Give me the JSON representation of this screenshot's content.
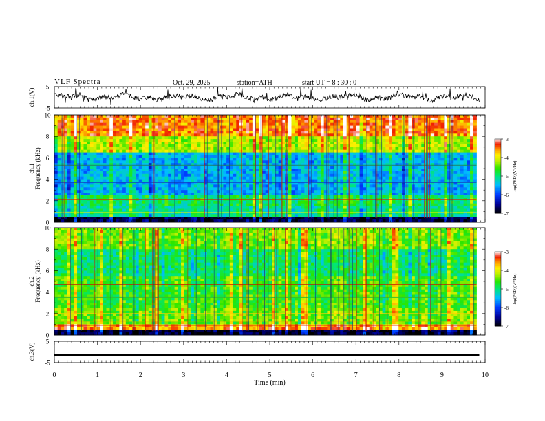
{
  "header": {
    "title": "VLF  Spectra",
    "date": "Oct. 29, 2025",
    "station": "station=ATH",
    "start": "start  UT  =   8  : 30 : 0"
  },
  "chart_data": [
    {
      "type": "line",
      "name": "ch1-waveform",
      "ylabel": "ch.1(V)",
      "ylim": [
        -5,
        5
      ],
      "yticks": [
        "5",
        "-5"
      ],
      "series": [
        {
          "name": "ch.1",
          "description": "noisy waveform, amplitude mostly within ±2 V"
        }
      ]
    },
    {
      "type": "heatmap",
      "name": "ch1-spectrogram",
      "ylabel_line1": "ch.1",
      "ylabel_line2": "Frequency  (kHz)",
      "yticks": [
        "0",
        "2",
        "4",
        "6",
        "8",
        "10"
      ],
      "ylim": [
        0,
        10
      ],
      "xlim": [
        0,
        9.8
      ],
      "colorbar": {
        "label": "log(PSD)(V²/Hz)",
        "ticks": [
          "-3",
          "-4",
          "-5",
          "-6",
          "-7"
        ],
        "range": [
          -7,
          -3
        ]
      }
    },
    {
      "type": "heatmap",
      "name": "ch2-spectrogram",
      "ylabel_line1": "ch.2",
      "ylabel_line2": "Frequency  (kHz)",
      "yticks": [
        "0",
        "2",
        "4",
        "6",
        "8",
        "10"
      ],
      "ylim": [
        0,
        10
      ],
      "xlim": [
        0,
        9.8
      ],
      "colorbar": {
        "label": "log(PSD)(V²/Hz)",
        "ticks": [
          "-3",
          "-4",
          "-5",
          "-6",
          "-7"
        ],
        "range": [
          -7,
          -3
        ]
      }
    },
    {
      "type": "line",
      "name": "ch3-waveform",
      "ylabel": "ch.3(V)",
      "ylim": [
        -5,
        5
      ],
      "yticks": [
        "5",
        "-5"
      ],
      "series": [
        {
          "name": "ch.3",
          "description": "flat trace near -1.5 V"
        }
      ]
    }
  ],
  "xaxis": {
    "label": "Time  (min)",
    "range": [
      0,
      10
    ],
    "ticks": [
      "0",
      "1",
      "2",
      "3",
      "4",
      "5",
      "6",
      "7",
      "8",
      "9",
      "10"
    ]
  }
}
